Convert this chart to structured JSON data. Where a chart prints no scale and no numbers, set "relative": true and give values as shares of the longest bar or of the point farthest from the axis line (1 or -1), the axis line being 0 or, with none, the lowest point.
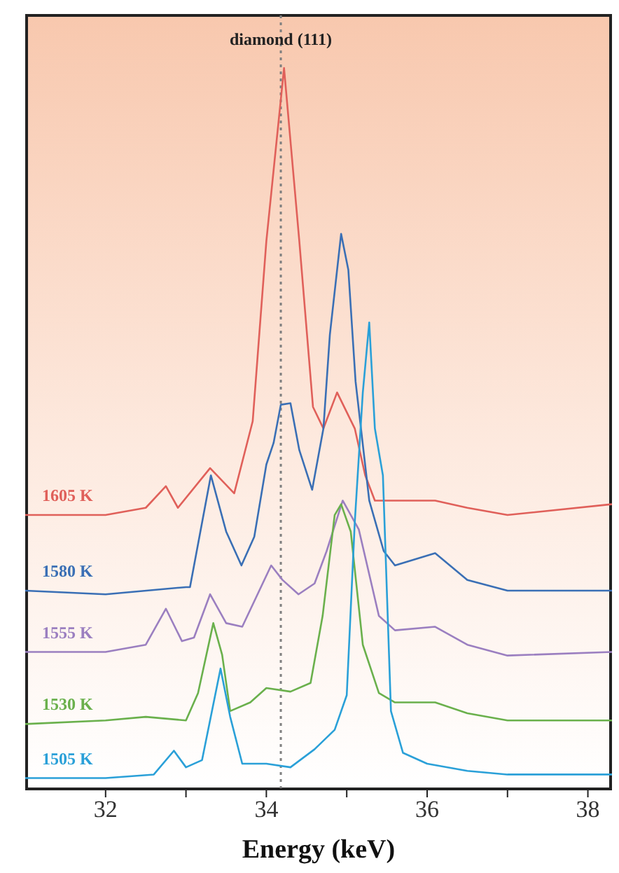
{
  "chart_data": {
    "type": "line",
    "relative": true,
    "xlabel": "Energy  (keV)",
    "xlim": [
      31,
      38.3
    ],
    "xticks": [
      32,
      {
        "value": 33,
        "label": null
      },
      34,
      {
        "value": 35,
        "label": null
      },
      36,
      {
        "value": 37,
        "label": null
      },
      38
    ],
    "marker": "none",
    "line_style": "solid",
    "ref_lines": [
      {
        "axis": "x",
        "value": 34.18,
        "label": "diamond (111)",
        "color": "#808080",
        "line_style": "dotted"
      }
    ],
    "series": [
      {
        "name": "1605 K",
        "color": "#e0605a",
        "x": [
          31,
          32,
          32.5,
          32.75,
          32.9,
          33.3,
          33.6,
          33.83,
          34.0,
          34.22,
          34.41,
          34.58,
          34.71,
          34.88,
          35.1,
          35.23,
          35.35,
          36.1,
          36.5,
          37,
          38.3
        ],
        "values": [
          0.38,
          0.38,
          0.39,
          0.42,
          0.39,
          0.445,
          0.41,
          0.51,
          0.76,
          1.0,
          0.76,
          0.53,
          0.5,
          0.55,
          0.5,
          0.435,
          0.4,
          0.4,
          0.39,
          0.38,
          0.395
        ]
      },
      {
        "name": "1580 K",
        "color": "#3a6fb5",
        "x": [
          31,
          32,
          33,
          33.05,
          33.31,
          33.5,
          33.69,
          33.85,
          34.0,
          34.09,
          34.18,
          34.3,
          34.41,
          34.57,
          34.71,
          34.79,
          34.93,
          35.02,
          35.11,
          35.28,
          35.46,
          35.6,
          36.1,
          36.5,
          37,
          38.3
        ],
        "values": [
          0.275,
          0.27,
          0.28,
          0.28,
          0.435,
          0.357,
          0.31,
          0.35,
          0.45,
          0.48,
          0.533,
          0.535,
          0.47,
          0.415,
          0.5,
          0.63,
          0.77,
          0.72,
          0.565,
          0.4,
          0.33,
          0.31,
          0.327,
          0.29,
          0.275,
          0.275
        ]
      },
      {
        "name": "1555 K",
        "color": "#9b7fc0",
        "x": [
          31,
          32,
          32.5,
          32.75,
          32.95,
          33.1,
          33.3,
          33.5,
          33.7,
          34.06,
          34.2,
          34.4,
          34.6,
          34.75,
          34.95,
          35.15,
          35.4,
          35.6,
          36.1,
          36.5,
          37,
          38.3
        ],
        "values": [
          0.19,
          0.19,
          0.2,
          0.25,
          0.205,
          0.21,
          0.27,
          0.23,
          0.225,
          0.31,
          0.29,
          0.27,
          0.285,
          0.33,
          0.4,
          0.36,
          0.24,
          0.22,
          0.225,
          0.2,
          0.185,
          0.19
        ]
      },
      {
        "name": "1530 K",
        "color": "#6ab04c",
        "x": [
          31,
          32,
          32.5,
          33,
          33.15,
          33.34,
          33.45,
          33.55,
          33.8,
          34.0,
          34.3,
          34.55,
          34.7,
          34.85,
          34.93,
          35.05,
          35.2,
          35.4,
          35.6,
          36.1,
          36.5,
          37,
          38.3
        ],
        "values": [
          0.09,
          0.095,
          0.1,
          0.095,
          0.133,
          0.23,
          0.186,
          0.108,
          0.12,
          0.14,
          0.135,
          0.147,
          0.24,
          0.38,
          0.395,
          0.357,
          0.2,
          0.133,
          0.12,
          0.12,
          0.105,
          0.095,
          0.095
        ]
      },
      {
        "name": "1505 K",
        "color": "#2aa0d8",
        "x": [
          31,
          32,
          32.6,
          32.85,
          33,
          33.2,
          33.43,
          33.55,
          33.7,
          34,
          34.3,
          34.6,
          34.85,
          35,
          35.1,
          35.2,
          35.28,
          35.35,
          35.45,
          35.55,
          35.7,
          36,
          36.5,
          37,
          38.3
        ],
        "values": [
          0.015,
          0.015,
          0.02,
          0.053,
          0.03,
          0.04,
          0.167,
          0.1,
          0.035,
          0.035,
          0.03,
          0.055,
          0.082,
          0.13,
          0.37,
          0.55,
          0.647,
          0.5,
          0.435,
          0.108,
          0.05,
          0.035,
          0.025,
          0.02,
          0.02
        ]
      }
    ]
  }
}
